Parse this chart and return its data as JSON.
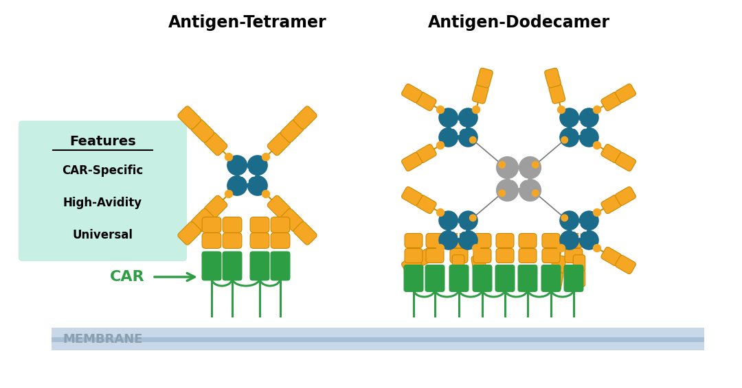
{
  "title_tetramer": "Antigen-Tetramer",
  "title_dodecamer": "Antigen-Dodecamer",
  "features_title": "Features",
  "features_items": [
    "CAR-Specific",
    "High-Avidity",
    "Universal"
  ],
  "membrane_label": "MEMBRANE",
  "car_label": "CAR",
  "bg_color": "#ffffff",
  "orange": "#F5A623",
  "dark_orange": "#CC8800",
  "teal": "#1B6B8A",
  "green": "#2E9E44",
  "gray": "#9E9E9E",
  "features_bg": "#C8EFE4"
}
